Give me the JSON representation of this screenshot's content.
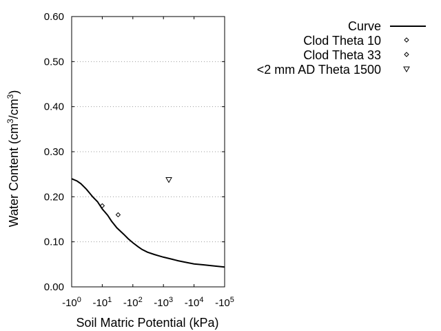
{
  "chart_data": {
    "type": "scatter",
    "xlabel": "Soil Matric Potential (kPa)",
    "ylabel": {
      "prefix": "Water Content (cm",
      "exp1": "3",
      "mid": "/cm",
      "exp2": "3",
      "suffix": ")"
    },
    "x_scale": "log",
    "xlim": [
      -1,
      -100000
    ],
    "ylim": [
      0,
      0.6
    ],
    "y_ticks": [
      "0.00",
      "0.10",
      "0.20",
      "0.30",
      "0.40",
      "0.50",
      "0.60"
    ],
    "y_tick_values": [
      0,
      0.1,
      0.2,
      0.3,
      0.4,
      0.5,
      0.6
    ],
    "x_ticks": [
      {
        "value": -1,
        "base": "-10",
        "exp": "0"
      },
      {
        "value": -10,
        "base": "-10",
        "exp": "1"
      },
      {
        "value": -100,
        "base": "-10",
        "exp": "2"
      },
      {
        "value": -1000,
        "base": "-10",
        "exp": "3"
      },
      {
        "value": -10000,
        "base": "-10",
        "exp": "4"
      },
      {
        "value": -100000,
        "base": "-10",
        "exp": "5"
      }
    ],
    "grid": "horizontal dotted",
    "legend_position": "top-right",
    "series": [
      {
        "name": "Curve",
        "kind": "line",
        "color": "#000000",
        "x": [
          -1,
          -1.5,
          -2,
          -3,
          -5,
          -7,
          -10,
          -15,
          -20,
          -30,
          -50,
          -70,
          -100,
          -150,
          -200,
          -300,
          -500,
          -700,
          -1000,
          -2000,
          -3000,
          -5000,
          -10000,
          -20000,
          -50000,
          -100000
        ],
        "y": [
          0.24,
          0.235,
          0.229,
          0.217,
          0.199,
          0.189,
          0.173,
          0.159,
          0.146,
          0.131,
          0.117,
          0.107,
          0.098,
          0.089,
          0.083,
          0.077,
          0.072,
          0.069,
          0.066,
          0.061,
          0.058,
          0.055,
          0.051,
          0.049,
          0.046,
          0.044
        ]
      },
      {
        "name": "Clod Theta 10",
        "kind": "marker",
        "marker": "diamond",
        "x": [
          -10
        ],
        "y": [
          0.18
        ]
      },
      {
        "name": "Clod Theta 33",
        "kind": "marker",
        "marker": "diamond",
        "x": [
          -33
        ],
        "y": [
          0.16
        ]
      },
      {
        "name": "<2 mm AD Theta 1500",
        "kind": "marker",
        "marker": "triangle-down",
        "x": [
          -1500
        ],
        "y": [
          0.238
        ]
      }
    ]
  }
}
